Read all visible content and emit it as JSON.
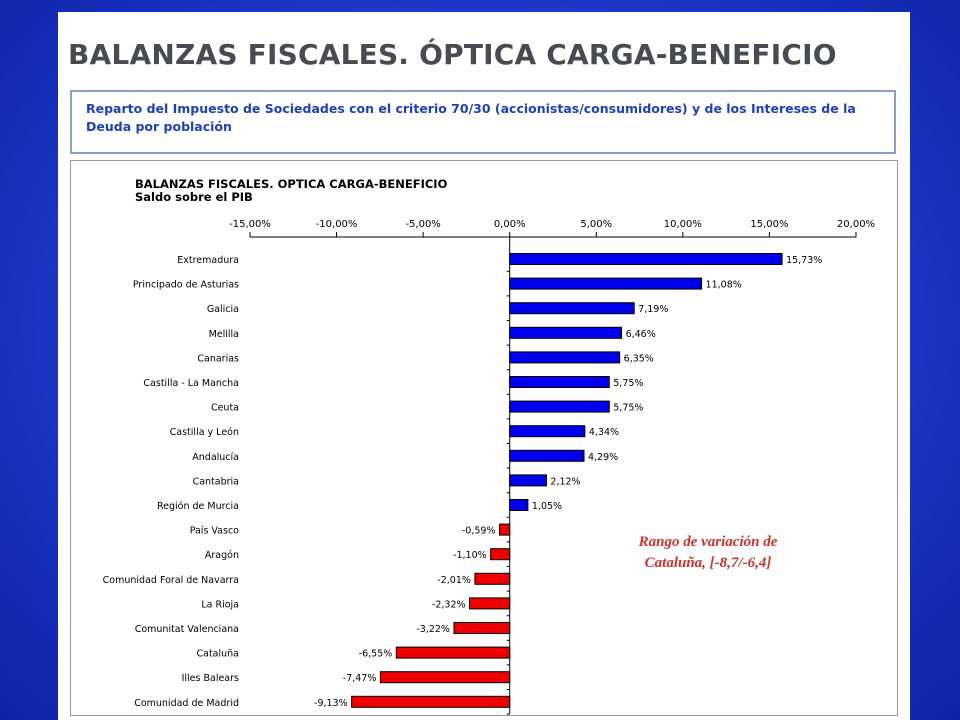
{
  "slide": {
    "title": "BALANZAS FISCALES. ÓPTICA CARGA-BENEFICIO",
    "subtitle": "Reparto del Impuesto de Sociedades con el criterio 70/30 (accionistas/consumidores)  y de los  Intereses de la Deuda por población"
  },
  "annotation": {
    "line1": "Rango de variación de",
    "line2": "Cataluña, [-8,7/-6,4]"
  },
  "colors": {
    "positive": "#0000ee",
    "negative": "#ee0000",
    "annotation": "#d0302a",
    "subtitle": "#1e3fb8"
  },
  "chart_data": {
    "type": "bar",
    "orientation": "horizontal",
    "title": "BALANZAS FISCALES. OPTICA CARGA-BENEFICIO",
    "subtitle": "Saldo sobre el PIB",
    "xlim": [
      -15,
      20
    ],
    "xticks": [
      -15,
      -10,
      -5,
      0,
      5,
      10,
      15,
      20
    ],
    "tick_labels": [
      "-15,00%",
      "-10,00%",
      "-5,00%",
      "0,00%",
      "5,00%",
      "10,00%",
      "15,00%",
      "20,00%"
    ],
    "categories": [
      "Extremadura",
      "Principado de Asturias",
      "Galicia",
      "Melilla",
      "Canarias",
      "Castilla - La Mancha",
      "Ceuta",
      "Castilla y León",
      "Andalucía",
      "Cantabria",
      "Región de Murcia",
      "País Vasco",
      "Aragón",
      "Comunidad Foral de Navarra",
      "La Rioja",
      "Comunitat Valenciana",
      "Cataluña",
      "Illes Balears",
      "Comunidad de Madrid"
    ],
    "values": [
      15.73,
      11.08,
      7.19,
      6.46,
      6.35,
      5.75,
      5.75,
      4.34,
      4.29,
      2.12,
      1.05,
      -0.59,
      -1.1,
      -2.01,
      -2.32,
      -3.22,
      -6.55,
      -7.47,
      -9.13
    ],
    "value_labels": [
      "15,73%",
      "11,08%",
      "7,19%",
      "6,46%",
      "6,35%",
      "5,75%",
      "5,75%",
      "4,34%",
      "4,29%",
      "2,12%",
      "1,05%",
      "-0,59%",
      "-1,10%",
      "-2,01%",
      "-2,32%",
      "-3,22%",
      "-6,55%",
      "-7,47%",
      "-9,13%"
    ],
    "grid": false,
    "legend": "none"
  }
}
